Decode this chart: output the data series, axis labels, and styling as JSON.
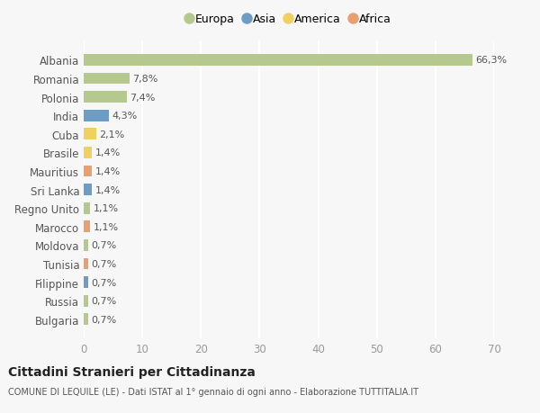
{
  "countries": [
    "Bulgaria",
    "Russia",
    "Filippine",
    "Tunisia",
    "Moldova",
    "Marocco",
    "Regno Unito",
    "Sri Lanka",
    "Mauritius",
    "Brasile",
    "Cuba",
    "India",
    "Polonia",
    "Romania",
    "Albania"
  ],
  "values": [
    0.7,
    0.7,
    0.7,
    0.7,
    0.7,
    1.1,
    1.1,
    1.4,
    1.4,
    1.4,
    2.1,
    4.3,
    7.4,
    7.8,
    66.3
  ],
  "labels": [
    "0,7%",
    "0,7%",
    "0,7%",
    "0,7%",
    "0,7%",
    "1,1%",
    "1,1%",
    "1,4%",
    "1,4%",
    "1,4%",
    "2,1%",
    "4,3%",
    "7,4%",
    "7,8%",
    "66,3%"
  ],
  "continents": [
    "Europa",
    "Europa",
    "Asia",
    "Africa",
    "Europa",
    "Africa",
    "Europa",
    "Asia",
    "Africa",
    "America",
    "America",
    "Asia",
    "Europa",
    "Europa",
    "Europa"
  ],
  "continent_colors": {
    "Europa": "#b5c98e",
    "Asia": "#6d9dc5",
    "America": "#f0d060",
    "Africa": "#e8a070"
  },
  "legend_items": [
    "Europa",
    "Asia",
    "America",
    "Africa"
  ],
  "legend_colors": [
    "#b5c98e",
    "#6d9dc5",
    "#f0d060",
    "#e8a070"
  ],
  "bg_color": "#f7f7f7",
  "grid_color": "#ffffff",
  "title": "Cittadini Stranieri per Cittadinanza",
  "subtitle": "COMUNE DI LEQUILE (LE) - Dati ISTAT al 1° gennaio di ogni anno - Elaborazione TUTTITALIA.IT",
  "xlim": [
    0,
    70
  ],
  "xticks": [
    0,
    10,
    20,
    30,
    40,
    50,
    60,
    70
  ]
}
